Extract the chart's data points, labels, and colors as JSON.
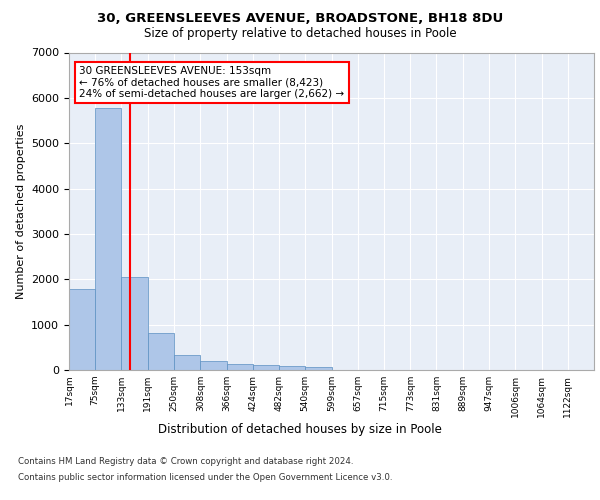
{
  "title1": "30, GREENSLEEVES AVENUE, BROADSTONE, BH18 8DU",
  "title2": "Size of property relative to detached houses in Poole",
  "xlabel": "Distribution of detached houses by size in Poole",
  "ylabel": "Number of detached properties",
  "footer1": "Contains HM Land Registry data © Crown copyright and database right 2024.",
  "footer2": "Contains public sector information licensed under the Open Government Licence v3.0.",
  "annotation_line1": "30 GREENSLEEVES AVENUE: 153sqm",
  "annotation_line2": "← 76% of detached houses are smaller (8,423)",
  "annotation_line3": "24% of semi-detached houses are larger (2,662) →",
  "bar_color": "#aec6e8",
  "bar_edge_color": "#5a8fc2",
  "redline_x": 153,
  "bin_edges": [
    17,
    75,
    133,
    191,
    250,
    308,
    366,
    424,
    482,
    540,
    599,
    657,
    715,
    773,
    831,
    889,
    947,
    1006,
    1064,
    1122,
    1180
  ],
  "bar_heights": [
    1780,
    5780,
    2060,
    820,
    330,
    195,
    130,
    110,
    90,
    75,
    0,
    0,
    0,
    0,
    0,
    0,
    0,
    0,
    0,
    0
  ],
  "ylim": [
    0,
    7000
  ],
  "yticks": [
    0,
    1000,
    2000,
    3000,
    4000,
    5000,
    6000,
    7000
  ],
  "background_color": "#e8eef7",
  "grid_color": "#ffffff"
}
